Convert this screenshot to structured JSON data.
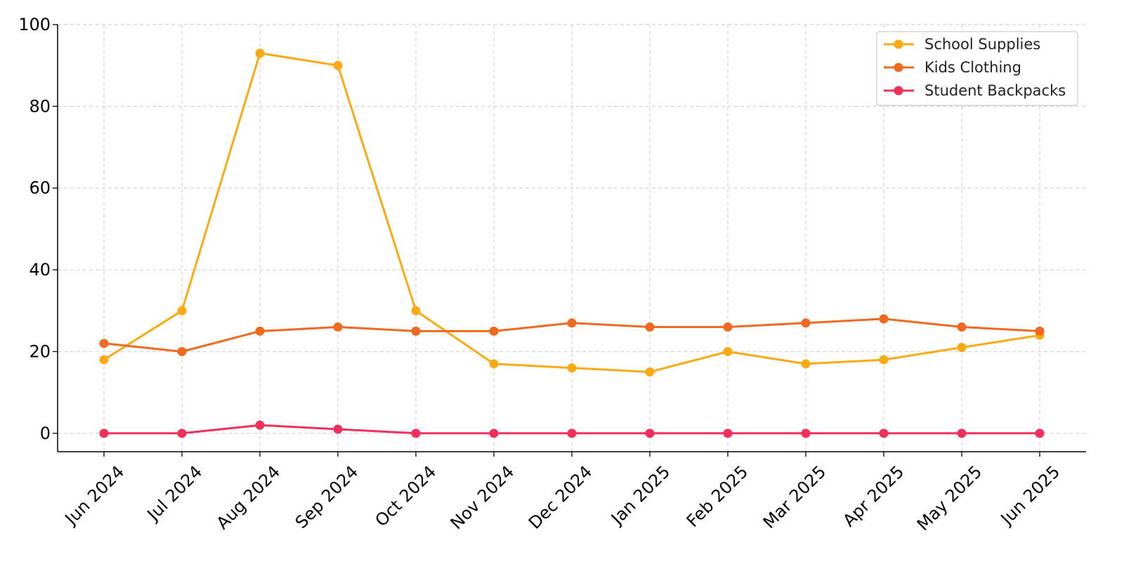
{
  "chart_data": {
    "type": "line",
    "title": "",
    "xlabel": "",
    "ylabel": "",
    "categories": [
      "Jun 2024",
      "Jul 2024",
      "Aug 2024",
      "Sep 2024",
      "Oct 2024",
      "Nov 2024",
      "Dec 2024",
      "Jan 2025",
      "Feb 2025",
      "Mar 2025",
      "Apr 2025",
      "May 2025",
      "Jun 2025"
    ],
    "y_ticks": [
      "0",
      "20",
      "40",
      "60",
      "80",
      "100"
    ],
    "ylim": [
      -4.5,
      100
    ],
    "grid": true,
    "legend_position": "top-right",
    "series": [
      {
        "name": "School Supplies",
        "color": "#FBAA13",
        "values": [
          18,
          30,
          93,
          90,
          30,
          17,
          16,
          15,
          20,
          17,
          18,
          21,
          24
        ]
      },
      {
        "name": "Kids Clothing",
        "color": "#F0691E",
        "values": [
          22,
          20,
          25,
          26,
          25,
          25,
          27,
          26,
          26,
          27,
          28,
          26,
          25
        ]
      },
      {
        "name": "Student Backpacks",
        "color": "#F0305A",
        "values": [
          0,
          0,
          2,
          1,
          0,
          0,
          0,
          0,
          0,
          0,
          0,
          0,
          0
        ]
      }
    ]
  }
}
